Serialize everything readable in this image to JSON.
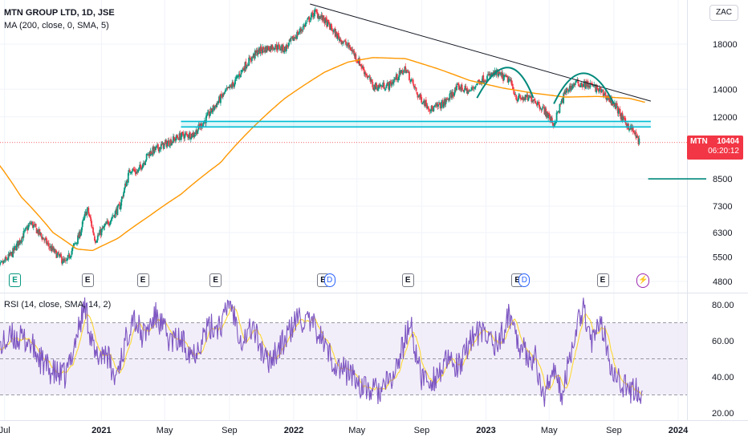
{
  "header": {
    "symbol_title": "MTN GROUP LTD, 1D, JSE",
    "ma_label": "MA (200, close, 0, SMA, 5)",
    "rsi_label": "RSI (14, close, SMA, 14, 2)",
    "currency": "ZAC"
  },
  "price_tag": {
    "ticker": "MTN",
    "price": "10404",
    "countdown": "06:20:12"
  },
  "colors": {
    "up": "#089981",
    "down": "#f23645",
    "ma": "#ff9800",
    "trendline": "#131722",
    "support": "#00bcd4",
    "rsi": "#7e57c2",
    "rsi_ma": "#fdd835",
    "rsi_band": "#ede7f6"
  },
  "chart_data": [
    {
      "type": "candlestick",
      "title": "MTN GROUP LTD, 1D, JSE",
      "y_scale": "log",
      "ylim": [
        4500,
        23000
      ],
      "y_ticks": [
        "18000",
        "14000",
        "12000",
        "8500",
        "7300",
        "6300",
        "5500",
        "4800"
      ],
      "x_ticks": [
        {
          "label": "Jul",
          "bold": false
        },
        {
          "label": "2021",
          "bold": true
        },
        {
          "label": "May",
          "bold": false
        },
        {
          "label": "Sep",
          "bold": false
        },
        {
          "label": "2022",
          "bold": true
        },
        {
          "label": "May",
          "bold": false
        },
        {
          "label": "Sep",
          "bold": false
        },
        {
          "label": "2023",
          "bold": true
        },
        {
          "label": "May",
          "bold": false
        },
        {
          "label": "Sep",
          "bold": false
        },
        {
          "label": "2024",
          "bold": true
        }
      ],
      "price_path": [
        [
          "2020-06-15",
          5100
        ],
        [
          "2020-07-15",
          5600
        ],
        [
          "2020-08-20",
          6650
        ],
        [
          "2020-09-25",
          5800
        ],
        [
          "2020-10-25",
          5300
        ],
        [
          "2020-11-20",
          6200
        ],
        [
          "2020-12-05",
          7200
        ],
        [
          "2020-12-20",
          6050
        ],
        [
          "2021-01-15",
          6700
        ],
        [
          "2021-02-05",
          7300
        ],
        [
          "2021-02-25",
          9000
        ],
        [
          "2021-03-10",
          8800
        ],
        [
          "2021-04-01",
          9800
        ],
        [
          "2021-05-01",
          10300
        ],
        [
          "2021-06-01",
          10800
        ],
        [
          "2021-06-25",
          10900
        ],
        [
          "2021-07-15",
          11700
        ],
        [
          "2021-08-15",
          13300
        ],
        [
          "2021-09-10",
          14500
        ],
        [
          "2021-10-01",
          16000
        ],
        [
          "2021-10-25",
          17300
        ],
        [
          "2021-11-25",
          17800
        ],
        [
          "2021-12-15",
          17500
        ],
        [
          "2022-01-15",
          19500
        ],
        [
          "2022-02-10",
          21500
        ],
        [
          "2022-03-01",
          20500
        ],
        [
          "2022-03-25",
          18800
        ],
        [
          "2022-04-20",
          17500
        ],
        [
          "2022-05-15",
          15500
        ],
        [
          "2022-06-01",
          14200
        ],
        [
          "2022-07-01",
          14300
        ],
        [
          "2022-08-01",
          15700
        ],
        [
          "2022-08-25",
          13500
        ],
        [
          "2022-09-20",
          12500
        ],
        [
          "2022-10-15",
          13000
        ],
        [
          "2022-11-10",
          14200
        ],
        [
          "2022-12-01",
          13800
        ],
        [
          "2022-12-20",
          14700
        ],
        [
          "2023-01-20",
          15300
        ],
        [
          "2023-02-15",
          14700
        ],
        [
          "2023-03-01",
          13300
        ],
        [
          "2023-04-01",
          13300
        ],
        [
          "2023-04-25",
          12300
        ],
        [
          "2023-05-10",
          11500
        ],
        [
          "2023-06-01",
          13800
        ],
        [
          "2023-06-20",
          14500
        ],
        [
          "2023-07-20",
          14300
        ],
        [
          "2023-08-05",
          13900
        ],
        [
          "2023-08-20",
          13400
        ],
        [
          "2023-09-05",
          12700
        ],
        [
          "2023-09-20",
          11700
        ],
        [
          "2023-10-05",
          11200
        ],
        [
          "2023-10-20",
          10404
        ]
      ],
      "moving_average": {
        "name": "MA (200, close, 0, SMA, 5)",
        "points": [
          [
            "2020-06-15",
            9400
          ],
          [
            "2020-08-01",
            7700
          ],
          [
            "2020-10-01",
            6300
          ],
          [
            "2020-11-15",
            5750
          ],
          [
            "2020-12-15",
            5700
          ],
          [
            "2021-02-01",
            6100
          ],
          [
            "2021-04-01",
            6900
          ],
          [
            "2021-06-01",
            7800
          ],
          [
            "2021-08-15",
            9300
          ],
          [
            "2021-10-15",
            11300
          ],
          [
            "2021-12-15",
            13300
          ],
          [
            "2022-03-01",
            15400
          ],
          [
            "2022-04-15",
            16300
          ],
          [
            "2022-06-01",
            16700
          ],
          [
            "2022-08-01",
            16600
          ],
          [
            "2022-10-01",
            15700
          ],
          [
            "2022-12-01",
            14700
          ],
          [
            "2023-02-01",
            14100
          ],
          [
            "2023-04-01",
            13700
          ],
          [
            "2023-06-01",
            13400
          ],
          [
            "2023-08-01",
            13450
          ],
          [
            "2023-10-01",
            13300
          ],
          [
            "2023-11-01",
            13000
          ]
        ]
      },
      "annotations": {
        "trendline": [
          [
            "2022-02-01",
            22500
          ],
          [
            "2023-11-10",
            13100
          ]
        ],
        "support_zone": [
          11350,
          11700
        ],
        "support_start": "2021-06-01",
        "support_end": "2023-11-10",
        "level_line": 8500,
        "level_line_start": "2023-11-05",
        "arcs": [
          {
            "from": "2022-12-15",
            "peak": "2023-02-15",
            "to": "2023-04-01",
            "value": 15800
          },
          {
            "from": "2023-05-10",
            "peak": "2023-07-05",
            "to": "2023-09-01",
            "value": 15300
          }
        ]
      },
      "events": [
        {
          "label": "E",
          "style": "green",
          "date": "2020-07-20"
        },
        {
          "label": "E",
          "style": "normal",
          "date": "2020-12-05"
        },
        {
          "label": "E",
          "style": "normal",
          "date": "2021-03-20"
        },
        {
          "label": "E",
          "style": "normal",
          "date": "2021-08-05"
        },
        {
          "label": "E",
          "style": "normal",
          "date": "2022-02-25"
        },
        {
          "label": "D",
          "style": "dv",
          "date": "2022-03-10"
        },
        {
          "label": "E",
          "style": "normal",
          "date": "2022-08-05"
        },
        {
          "label": "E",
          "style": "normal",
          "date": "2023-03-01"
        },
        {
          "label": "D",
          "style": "dv",
          "date": "2023-03-15"
        },
        {
          "label": "E",
          "style": "normal",
          "date": "2023-08-10"
        },
        {
          "label": "⚡",
          "style": "bolt",
          "date": "2023-10-25"
        }
      ]
    },
    {
      "type": "line",
      "title": "RSI (14, close, SMA, 14, 2)",
      "ylim": [
        18,
        85
      ],
      "y_ticks": [
        "80.00",
        "60.00",
        "40.00",
        "20.00"
      ],
      "bands": [
        30,
        50,
        70
      ],
      "series": [
        {
          "name": "RSI",
          "style": "rsi"
        },
        {
          "name": "RSI-based MA",
          "style": "rsi_ma"
        }
      ],
      "rsi_path": [
        [
          "2020-06-15",
          55
        ],
        [
          "2020-07-15",
          62
        ],
        [
          "2020-08-15",
          60
        ],
        [
          "2020-09-10",
          48
        ],
        [
          "2020-10-01",
          42
        ],
        [
          "2020-10-25",
          40
        ],
        [
          "2020-11-15",
          63
        ],
        [
          "2020-12-01",
          80
        ],
        [
          "2020-12-20",
          50
        ],
        [
          "2021-01-10",
          55
        ],
        [
          "2021-01-25",
          38
        ],
        [
          "2021-02-15",
          58
        ],
        [
          "2021-03-01",
          75
        ],
        [
          "2021-03-20",
          62
        ],
        [
          "2021-04-15",
          74
        ],
        [
          "2021-05-10",
          60
        ],
        [
          "2021-06-01",
          60
        ],
        [
          "2021-06-25",
          53
        ],
        [
          "2021-07-20",
          66
        ],
        [
          "2021-08-20",
          70
        ],
        [
          "2021-09-01",
          83
        ],
        [
          "2021-09-25",
          60
        ],
        [
          "2021-10-15",
          68
        ],
        [
          "2021-11-10",
          48
        ],
        [
          "2021-12-10",
          58
        ],
        [
          "2022-01-10",
          73
        ],
        [
          "2022-02-15",
          66
        ],
        [
          "2022-03-05",
          55
        ],
        [
          "2022-03-25",
          45
        ],
        [
          "2022-04-20",
          42
        ],
        [
          "2022-05-15",
          33
        ],
        [
          "2022-06-15",
          32
        ],
        [
          "2022-07-10",
          40
        ],
        [
          "2022-08-10",
          70
        ],
        [
          "2022-08-30",
          40
        ],
        [
          "2022-09-20",
          38
        ],
        [
          "2022-10-20",
          48
        ],
        [
          "2022-11-15",
          45
        ],
        [
          "2022-12-01",
          62
        ],
        [
          "2022-12-25",
          64
        ],
        [
          "2023-01-25",
          58
        ],
        [
          "2023-02-15",
          75
        ],
        [
          "2023-03-10",
          55
        ],
        [
          "2023-04-05",
          50
        ],
        [
          "2023-04-20",
          27
        ],
        [
          "2023-05-05",
          45
        ],
        [
          "2023-05-25",
          30
        ],
        [
          "2023-06-15",
          60
        ],
        [
          "2023-07-05",
          80
        ],
        [
          "2023-07-20",
          60
        ],
        [
          "2023-08-10",
          68
        ],
        [
          "2023-08-25",
          48
        ],
        [
          "2023-09-15",
          38
        ],
        [
          "2023-10-01",
          30
        ],
        [
          "2023-10-15",
          34
        ],
        [
          "2023-10-25",
          29
        ]
      ]
    }
  ]
}
